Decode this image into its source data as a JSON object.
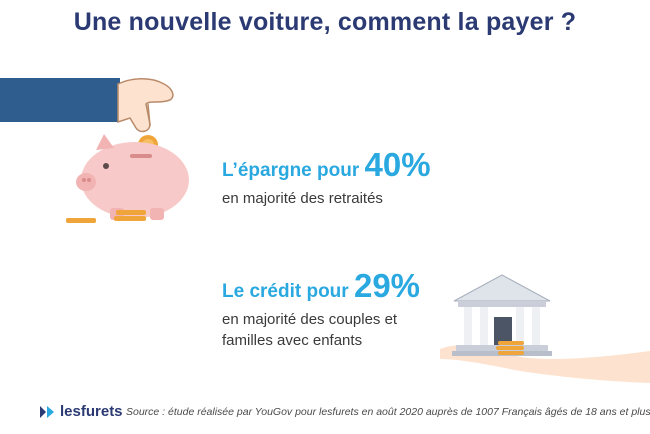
{
  "title": "Une nouvelle voiture, comment la payer ?",
  "stats": [
    {
      "label": "L’épargne pour ",
      "percent": "40%",
      "subtitle": "en majorité des retraités"
    },
    {
      "label": "Le crédit pour ",
      "percent": "29%",
      "subtitle_line1": "en majorité des couples et",
      "subtitle_line2": "familles avec enfants"
    }
  ],
  "footer": {
    "logo": "lesfurets",
    "source": "Source : étude réalisée par YouGov pour lesfurets en août 2020 auprès de 1007 Français âgés de 18 ans et plus"
  },
  "colors": {
    "title": "#2b3a73",
    "accent": "#2aa8e0",
    "piggy": "#f7c9c9",
    "coin": "#f0a53a",
    "sleeve": "#2f5e8e",
    "skin": "#fde3cf"
  },
  "icons": [
    "hand-icon",
    "piggy-bank-icon",
    "coin-icon",
    "bank-building-icon",
    "logo-icon"
  ]
}
